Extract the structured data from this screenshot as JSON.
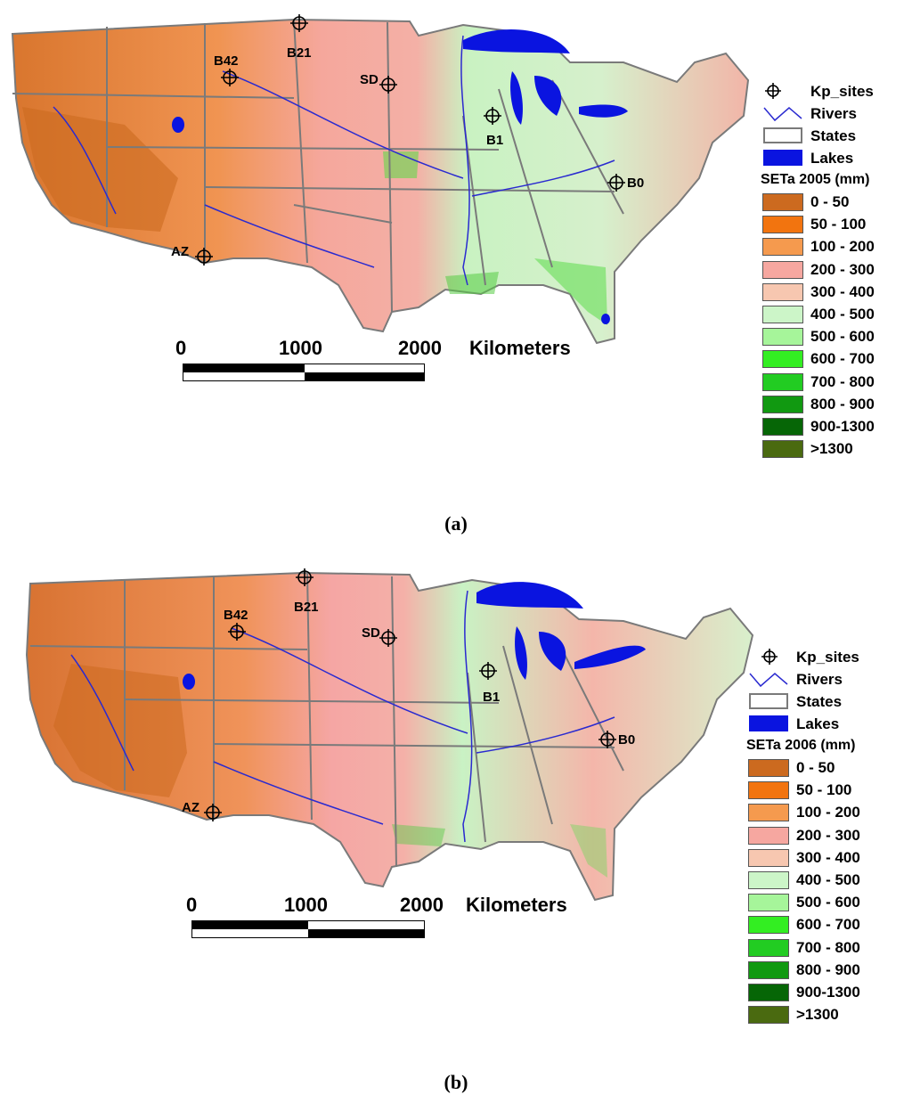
{
  "panels": [
    {
      "id": "a",
      "caption": "(a)",
      "legend_title": "SETa 2005 (mm)",
      "sites": [
        {
          "label": "B21"
        },
        {
          "label": "B42"
        },
        {
          "label": "SD"
        },
        {
          "label": "B1"
        },
        {
          "label": "B0"
        },
        {
          "label": "AZ"
        }
      ]
    },
    {
      "id": "b",
      "caption": "(b)",
      "legend_title": "SETa 2006  (mm)",
      "sites": [
        {
          "label": "B21"
        },
        {
          "label": "B42"
        },
        {
          "label": "SD"
        },
        {
          "label": "B1"
        },
        {
          "label": "B0"
        },
        {
          "label": "AZ"
        }
      ]
    }
  ],
  "legend": {
    "kp_sites": "Kp_sites",
    "rivers": "Rivers",
    "states": "States",
    "lakes": "Lakes",
    "classes": [
      {
        "label": "0 - 50",
        "color": "#cc6a1f"
      },
      {
        "label": "50 - 100",
        "color": "#f2740f"
      },
      {
        "label": "100 - 200",
        "color": "#f59a4e"
      },
      {
        "label": "200 - 300",
        "color": "#f6a7a0"
      },
      {
        "label": "300 - 400",
        "color": "#f7c7b0"
      },
      {
        "label": "400 - 500",
        "color": "#ccf5c8"
      },
      {
        "label": "500 - 600",
        "color": "#a6f59a"
      },
      {
        "label": "600 - 700",
        "color": "#33ee22"
      },
      {
        "label": "700 - 800",
        "color": "#22cc22"
      },
      {
        "label": "800 - 900",
        "color": "#119911"
      },
      {
        "label": "900-1300",
        "color": "#066606"
      },
      {
        "label": ">1300",
        "color": "#4a6a10"
      }
    ]
  },
  "scale": {
    "ticks": [
      "0",
      "1000",
      "2000"
    ],
    "unit": "Kilometers"
  },
  "colors": {
    "lake": "#0a14e0",
    "river": "#2a2ad0",
    "state_line": "#7a7a7a",
    "background": "#ffffff"
  }
}
